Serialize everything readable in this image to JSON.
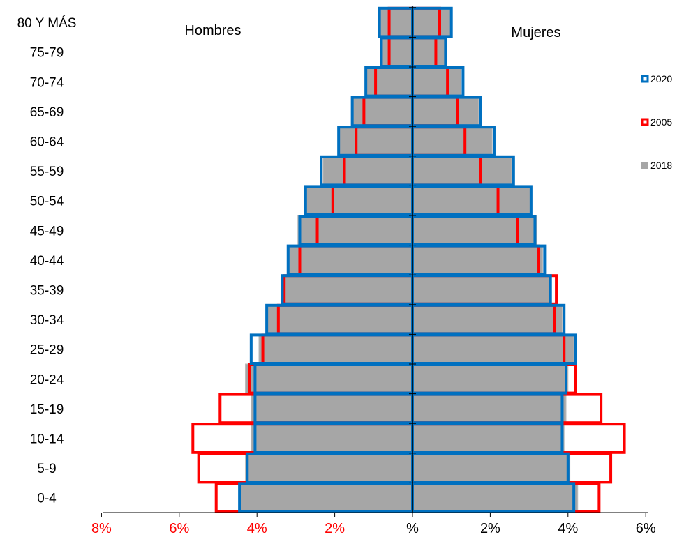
{
  "chart_data": {
    "type": "bar",
    "orientation": "horizontal",
    "chart_kind": "population pyramid",
    "categories": [
      "0-4",
      "5-9",
      "10-14",
      "15-19",
      "20-24",
      "25-29",
      "30-34",
      "35-39",
      "40-44",
      "45-49",
      "50-54",
      "55-59",
      "60-64",
      "65-69",
      "70-74",
      "75-79",
      "80 Y MÁS"
    ],
    "side_labels": {
      "left": "Hombres",
      "right": "Mujeres"
    },
    "x_ticks": [
      {
        "label": "8%",
        "value": -8,
        "color": "#FF0000"
      },
      {
        "label": "6%",
        "value": -6,
        "color": "#FF0000"
      },
      {
        "label": "4%",
        "value": -4,
        "color": "#FF0000"
      },
      {
        "label": "2%",
        "value": -2,
        "color": "#FF0000"
      },
      {
        "label": "%",
        "value": 0,
        "color": "#000000"
      },
      {
        "label": "2%",
        "value": 2,
        "color": "#000000"
      },
      {
        "label": "4%",
        "value": 4,
        "color": "#000000"
      },
      {
        "label": "6%",
        "value": 6,
        "color": "#000000"
      }
    ],
    "xlim": [
      -8,
      6
    ],
    "grid": false,
    "legend_position": "right",
    "series": [
      {
        "name": "2018",
        "style": "filled",
        "color": "#A6A6A6",
        "hombres": [
          4.45,
          4.3,
          4.15,
          4.15,
          4.3,
          3.95,
          3.75,
          3.3,
          3.2,
          2.95,
          2.75,
          2.3,
          1.9,
          1.55,
          1.2,
          0.8,
          0.85
        ],
        "mujeres": [
          4.25,
          4.05,
          3.9,
          3.95,
          4.0,
          4.15,
          3.85,
          3.55,
          3.35,
          3.2,
          3.05,
          2.55,
          2.05,
          1.7,
          1.25,
          0.85,
          1.0
        ]
      },
      {
        "name": "2005",
        "style": "outline",
        "color": "#FF0000",
        "hombres": [
          5.05,
          5.5,
          5.65,
          4.95,
          4.2,
          3.85,
          3.45,
          3.3,
          2.9,
          2.45,
          2.05,
          1.75,
          1.45,
          1.25,
          0.95,
          0.6,
          0.6
        ],
        "mujeres": [
          4.8,
          5.1,
          5.45,
          4.85,
          4.2,
          3.9,
          3.65,
          3.7,
          3.25,
          2.7,
          2.2,
          1.75,
          1.35,
          1.15,
          0.9,
          0.6,
          0.7
        ]
      },
      {
        "name": "2020",
        "style": "outline",
        "color": "#0070C0",
        "hombres": [
          4.45,
          4.25,
          4.05,
          4.05,
          4.05,
          4.15,
          3.75,
          3.35,
          3.2,
          2.9,
          2.75,
          2.35,
          1.9,
          1.55,
          1.2,
          0.8,
          0.85
        ],
        "mujeres": [
          4.15,
          4.0,
          3.85,
          3.85,
          3.95,
          4.2,
          3.9,
          3.55,
          3.4,
          3.15,
          3.05,
          2.6,
          2.1,
          1.75,
          1.3,
          0.85,
          1.0
        ]
      }
    ],
    "legend_order": [
      "2020",
      "2005",
      "2018"
    ]
  }
}
